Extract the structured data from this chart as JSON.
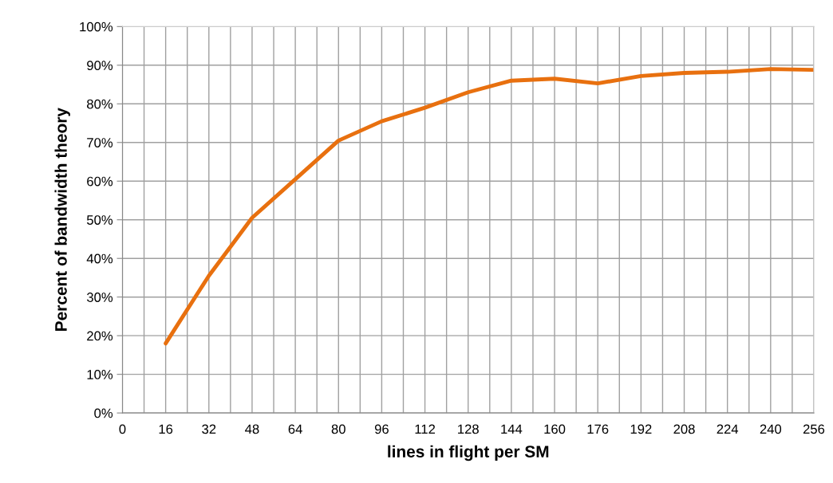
{
  "chart_data": {
    "type": "line",
    "xlabel": "lines in flight per SM",
    "ylabel": "Percent of bandwidth theory",
    "x": [
      16,
      32,
      48,
      64,
      80,
      96,
      112,
      128,
      144,
      160,
      176,
      192,
      208,
      224,
      240,
      256
    ],
    "series": [
      {
        "color": "#e8700f",
        "values": [
          18,
          35.5,
          50.5,
          60.5,
          70.5,
          75.5,
          79,
          83,
          86,
          86.5,
          85.3,
          87.2,
          88,
          88.3,
          89,
          88.8
        ]
      }
    ],
    "xlim": [
      0,
      256
    ],
    "xticks": [
      0,
      {
        "value": 8,
        "label": null
      },
      16,
      {
        "value": 24,
        "label": null
      },
      32,
      {
        "value": 40,
        "label": null
      },
      48,
      {
        "value": 56,
        "label": null
      },
      64,
      {
        "value": 72,
        "label": null
      },
      80,
      {
        "value": 88,
        "label": null
      },
      96,
      {
        "value": 104,
        "label": null
      },
      112,
      {
        "value": 120,
        "label": null
      },
      128,
      {
        "value": 136,
        "label": null
      },
      144,
      {
        "value": 152,
        "label": null
      },
      160,
      {
        "value": 168,
        "label": null
      },
      176,
      {
        "value": 184,
        "label": null
      },
      192,
      {
        "value": 200,
        "label": null
      },
      208,
      {
        "value": 216,
        "label": null
      },
      224,
      {
        "value": 232,
        "label": null
      },
      240,
      {
        "value": 248,
        "label": null
      },
      256
    ],
    "ylim": [
      0,
      100
    ],
    "yticks": [
      {
        "value": 0,
        "label": "0%"
      },
      {
        "value": 10,
        "label": "10%"
      },
      {
        "value": 20,
        "label": "20%"
      },
      {
        "value": 30,
        "label": "30%"
      },
      {
        "value": 40,
        "label": "40%"
      },
      {
        "value": 50,
        "label": "50%"
      },
      {
        "value": 60,
        "label": "60%"
      },
      {
        "value": 70,
        "label": "70%"
      },
      {
        "value": 80,
        "label": "80%"
      },
      {
        "value": 90,
        "label": "90%"
      },
      {
        "value": 100,
        "label": "100%"
      }
    ],
    "grid": true,
    "marker": "none",
    "line_style": "solid"
  }
}
